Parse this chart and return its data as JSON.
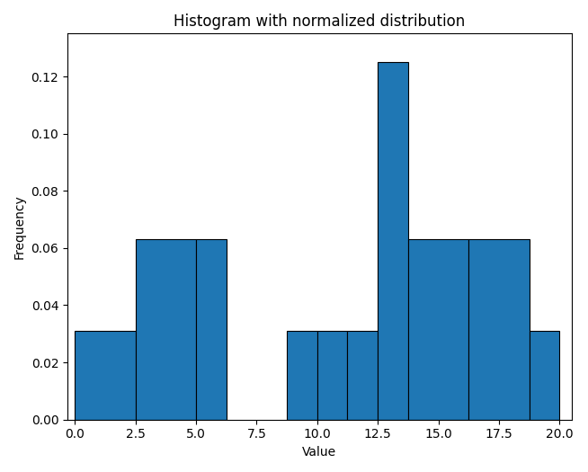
{
  "title": "Histogram with normalized distribution",
  "xlabel": "Value",
  "ylabel": "Frequency",
  "bar_color": "#1f77b4",
  "edge_color": "black",
  "bin_edges": [
    0.0,
    2.5,
    5.0,
    6.25,
    8.75,
    10.0,
    11.25,
    12.5,
    13.75,
    16.25,
    18.75,
    20.0
  ],
  "bar_heights": [
    0.031,
    0.063,
    0.063,
    0.0,
    0.031,
    0.031,
    0.031,
    0.125,
    0.063,
    0.063,
    0.031
  ],
  "ylim": [
    0,
    0.135
  ],
  "yticks": [
    0.0,
    0.02,
    0.04,
    0.06,
    0.08,
    0.1,
    0.12
  ],
  "xticks": [
    0.0,
    2.5,
    5.0,
    7.5,
    10.0,
    12.5,
    15.0,
    17.5,
    20.0
  ],
  "figsize": [
    6.54,
    5.25
  ],
  "dpi": 100
}
